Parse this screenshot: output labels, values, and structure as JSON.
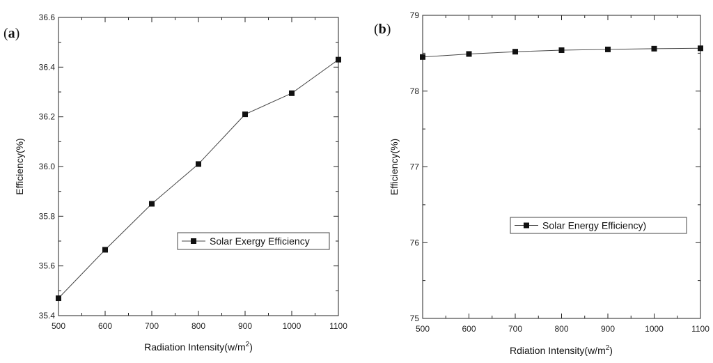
{
  "chart_data": [
    {
      "type": "line",
      "panel_label": "(a)",
      "panel_letter": "a",
      "title": "",
      "xlabel": "Radiation Intensity(w/m",
      "xlabel_sup": "2",
      "xlabel_tail": ")",
      "ylabel": "Efficiency(%)",
      "xlim": [
        500,
        1100
      ],
      "ylim": [
        35.4,
        36.6
      ],
      "x_ticks": [
        500,
        600,
        700,
        800,
        900,
        1000,
        1100
      ],
      "x_tick_labels": [
        "500",
        "600",
        "700",
        "800",
        "900",
        "1000",
        "1100"
      ],
      "y_ticks": [
        35.4,
        35.6,
        35.8,
        36.0,
        36.2,
        36.4,
        36.6
      ],
      "y_tick_labels": [
        "35.4",
        "35.6",
        "35.8",
        "36.0",
        "36.2",
        "36.4",
        "36.6"
      ],
      "grid": false,
      "legend_position": "center-right",
      "series": [
        {
          "name": "Solar Exergy Efficiency",
          "marker": "square",
          "x": [
            500,
            600,
            700,
            800,
            900,
            1000,
            1100
          ],
          "values": [
            35.47,
            35.665,
            35.85,
            36.01,
            36.21,
            36.295,
            36.43
          ]
        }
      ]
    },
    {
      "type": "line",
      "panel_label": "(b)",
      "panel_letter": "b",
      "title": "",
      "xlabel": "Rdiation Intensity(w/m",
      "xlabel_sup": "2",
      "xlabel_tail": ")",
      "ylabel": "Efficiency(%)",
      "xlim": [
        500,
        1100
      ],
      "ylim": [
        75,
        79
      ],
      "x_ticks": [
        500,
        600,
        700,
        800,
        900,
        1000,
        1100
      ],
      "x_tick_labels": [
        "500",
        "600",
        "700",
        "800",
        "900",
        "1000",
        "1100"
      ],
      "y_ticks": [
        75,
        76,
        77,
        78,
        79
      ],
      "y_tick_labels": [
        "75",
        "76",
        "77",
        "78",
        "79"
      ],
      "grid": false,
      "legend_position": "center-right",
      "series": [
        {
          "name": "Solar Energy Efficiency)",
          "marker": "square",
          "x": [
            500,
            600,
            700,
            800,
            900,
            1000,
            1100
          ],
          "values": [
            78.45,
            78.49,
            78.52,
            78.54,
            78.55,
            78.56,
            78.565
          ]
        }
      ]
    }
  ]
}
